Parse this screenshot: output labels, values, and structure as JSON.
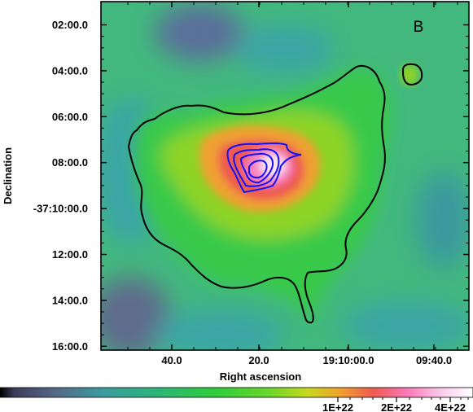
{
  "chart_data": {
    "type": "heatmap",
    "title": "",
    "panel_label": "B",
    "xlabel": "Right ascension",
    "ylabel": "Declination",
    "x_ticks": [
      {
        "label": "40.0",
        "ra_offset_s": 30
      },
      {
        "label": "20.0",
        "ra_offset_s": 10
      },
      {
        "label": "19:10:00.0",
        "ra_offset_s": 0
      },
      {
        "label": "09:40.0",
        "ra_offset_s": -20
      }
    ],
    "y_ticks": [
      {
        "label": "02:00.0",
        "dec_arcmin": -2
      },
      {
        "label": "04:00.0",
        "dec_arcmin": -4
      },
      {
        "label": "06:00.0",
        "dec_arcmin": -6
      },
      {
        "label": "08:00.0",
        "dec_arcmin": -8
      },
      {
        "label": "-37:10:00.0",
        "dec_arcmin": -10
      },
      {
        "label": "12:00.0",
        "dec_arcmin": -12
      },
      {
        "label": "14:00.0",
        "dec_arcmin": -14
      },
      {
        "label": "16:00.0",
        "dec_arcmin": -16
      }
    ],
    "colorbar": {
      "scale": "log",
      "tick_labels": [
        "1E+22",
        "2E+22",
        "4E+22"
      ],
      "tick_values": [
        1e+22,
        2e+22,
        4e+22
      ],
      "colors": [
        "#000000",
        "#3c3c58",
        "#556a88",
        "#3a9d9d",
        "#2cb47a",
        "#2ccc3c",
        "#6ad62a",
        "#c8d81e",
        "#f0a030",
        "#ee5a50",
        "#f878b8",
        "#fbd2ee",
        "#ffffff"
      ]
    },
    "contours": [
      {
        "color": "#000000",
        "description": "outer column density contour"
      },
      {
        "color": "#0000ff",
        "description": "nested contours around peak"
      }
    ],
    "grid": false,
    "legend": "none"
  }
}
